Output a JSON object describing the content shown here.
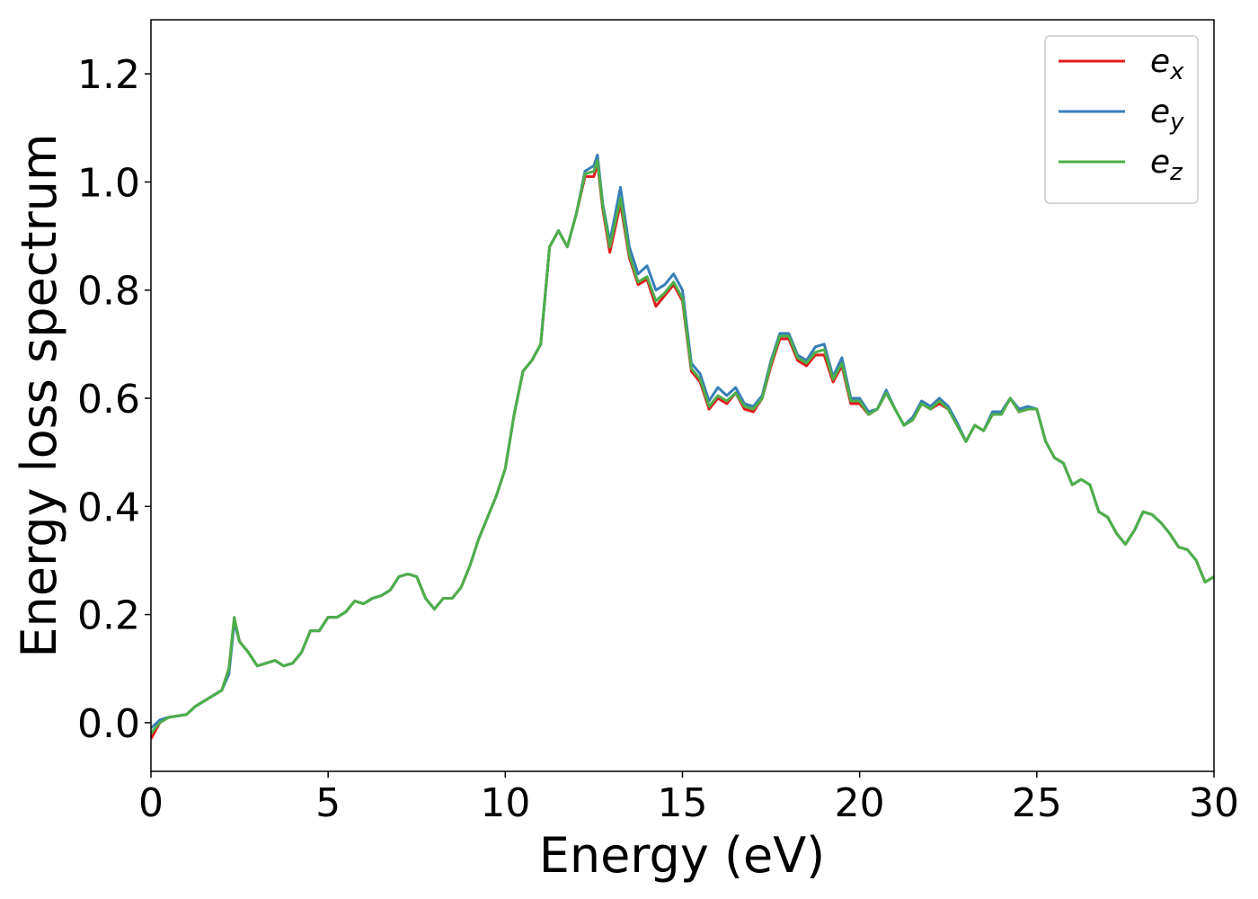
{
  "chart_data": {
    "type": "line",
    "xlabel": "Energy (eV)",
    "ylabel": "Energy loss spectrum",
    "x": [
      0,
      0.25,
      0.5,
      1,
      1.25,
      1.5,
      1.75,
      2,
      2.2,
      2.35,
      2.5,
      2.75,
      3,
      3.25,
      3.5,
      3.75,
      4,
      4.25,
      4.5,
      4.75,
      5,
      5.25,
      5.5,
      5.75,
      6,
      6.25,
      6.5,
      6.75,
      7,
      7.25,
      7.5,
      7.75,
      8,
      8.25,
      8.5,
      8.75,
      9,
      9.25,
      9.5,
      9.75,
      10,
      10.25,
      10.5,
      10.75,
      11,
      11.25,
      11.5,
      11.75,
      12,
      12.25,
      12.5,
      12.6,
      12.75,
      12.95,
      13.25,
      13.5,
      13.75,
      14,
      14.25,
      14.5,
      14.75,
      15,
      15.25,
      15.5,
      15.75,
      16,
      16.25,
      16.5,
      16.75,
      17,
      17.25,
      17.5,
      17.75,
      18,
      18.25,
      18.5,
      18.75,
      19,
      19.25,
      19.5,
      19.75,
      20,
      20.25,
      20.5,
      20.75,
      21,
      21.25,
      21.5,
      21.75,
      22,
      22.25,
      22.5,
      22.75,
      23,
      23.25,
      23.5,
      23.75,
      24,
      24.25,
      24.5,
      24.75,
      25,
      25.25,
      25.5,
      25.75,
      26,
      26.25,
      26.5,
      26.75,
      27,
      27.25,
      27.5,
      27.75,
      28,
      28.25,
      28.5,
      28.75,
      29,
      29.25,
      29.5,
      29.75,
      30
    ],
    "series": [
      {
        "name": "ex",
        "color": "#e41a1c",
        "values": [
          -0.03,
          0,
          0.01,
          0.015,
          0.03,
          0.04,
          0.05,
          0.06,
          0.1,
          0.19,
          0.15,
          0.13,
          0.105,
          0.11,
          0.115,
          0.105,
          0.11,
          0.13,
          0.17,
          0.17,
          0.195,
          0.195,
          0.205,
          0.225,
          0.22,
          0.23,
          0.235,
          0.245,
          0.27,
          0.275,
          0.27,
          0.23,
          0.21,
          0.23,
          0.23,
          0.25,
          0.29,
          0.34,
          0.38,
          0.42,
          0.47,
          0.57,
          0.65,
          0.67,
          0.7,
          0.88,
          0.91,
          0.88,
          0.94,
          1.01,
          1.01,
          1.035,
          0.95,
          0.87,
          0.96,
          0.86,
          0.81,
          0.82,
          0.77,
          0.79,
          0.81,
          0.78,
          0.65,
          0.63,
          0.58,
          0.6,
          0.59,
          0.61,
          0.58,
          0.575,
          0.6,
          0.66,
          0.71,
          0.71,
          0.67,
          0.66,
          0.68,
          0.68,
          0.63,
          0.66,
          0.59,
          0.59,
          0.57,
          0.58,
          0.61,
          0.58,
          0.55,
          0.56,
          0.59,
          0.58,
          0.59,
          0.58,
          0.55,
          0.52,
          0.55,
          0.54,
          0.57,
          0.57,
          0.6,
          0.575,
          0.58,
          0.58,
          0.52,
          0.49,
          0.48,
          0.44,
          0.45,
          0.44,
          0.39,
          0.38,
          0.35,
          0.33,
          0.355,
          0.39,
          0.385,
          0.37,
          0.35,
          0.325,
          0.32,
          0.3,
          0.26,
          0.27
        ]
      },
      {
        "name": "ey",
        "color": "#377eb8",
        "values": [
          -0.01,
          0.005,
          0.01,
          0.015,
          0.03,
          0.04,
          0.05,
          0.06,
          0.09,
          0.185,
          0.15,
          0.13,
          0.105,
          0.11,
          0.115,
          0.105,
          0.11,
          0.13,
          0.17,
          0.17,
          0.195,
          0.195,
          0.205,
          0.225,
          0.22,
          0.23,
          0.235,
          0.245,
          0.27,
          0.275,
          0.27,
          0.23,
          0.21,
          0.23,
          0.23,
          0.25,
          0.29,
          0.34,
          0.38,
          0.42,
          0.47,
          0.57,
          0.65,
          0.67,
          0.7,
          0.88,
          0.91,
          0.88,
          0.94,
          1.02,
          1.03,
          1.05,
          0.96,
          0.89,
          0.99,
          0.88,
          0.83,
          0.845,
          0.8,
          0.81,
          0.83,
          0.8,
          0.665,
          0.645,
          0.595,
          0.62,
          0.605,
          0.62,
          0.59,
          0.585,
          0.605,
          0.67,
          0.72,
          0.72,
          0.68,
          0.67,
          0.695,
          0.7,
          0.64,
          0.675,
          0.6,
          0.6,
          0.575,
          0.58,
          0.615,
          0.58,
          0.55,
          0.565,
          0.595,
          0.585,
          0.6,
          0.585,
          0.555,
          0.52,
          0.55,
          0.54,
          0.575,
          0.575,
          0.6,
          0.58,
          0.585,
          0.58,
          0.52,
          0.49,
          0.48,
          0.44,
          0.45,
          0.44,
          0.39,
          0.38,
          0.35,
          0.33,
          0.355,
          0.39,
          0.385,
          0.37,
          0.35,
          0.325,
          0.32,
          0.3,
          0.26,
          0.27
        ]
      },
      {
        "name": "ez",
        "color": "#4daf4a",
        "values": [
          -0.02,
          0,
          0.01,
          0.015,
          0.03,
          0.04,
          0.05,
          0.06,
          0.1,
          0.195,
          0.15,
          0.13,
          0.105,
          0.11,
          0.115,
          0.105,
          0.11,
          0.13,
          0.17,
          0.17,
          0.195,
          0.195,
          0.205,
          0.225,
          0.22,
          0.23,
          0.235,
          0.245,
          0.27,
          0.275,
          0.27,
          0.23,
          0.21,
          0.23,
          0.23,
          0.25,
          0.29,
          0.34,
          0.38,
          0.42,
          0.47,
          0.57,
          0.65,
          0.67,
          0.7,
          0.88,
          0.91,
          0.88,
          0.94,
          1.015,
          1.02,
          1.04,
          0.955,
          0.88,
          0.97,
          0.865,
          0.815,
          0.825,
          0.78,
          0.795,
          0.815,
          0.785,
          0.655,
          0.635,
          0.585,
          0.605,
          0.595,
          0.61,
          0.585,
          0.58,
          0.6,
          0.665,
          0.715,
          0.715,
          0.675,
          0.665,
          0.685,
          0.69,
          0.635,
          0.665,
          0.595,
          0.595,
          0.57,
          0.58,
          0.61,
          0.58,
          0.55,
          0.56,
          0.59,
          0.58,
          0.595,
          0.58,
          0.55,
          0.52,
          0.55,
          0.54,
          0.57,
          0.57,
          0.6,
          0.575,
          0.58,
          0.58,
          0.52,
          0.49,
          0.48,
          0.44,
          0.45,
          0.44,
          0.39,
          0.38,
          0.35,
          0.33,
          0.355,
          0.39,
          0.385,
          0.37,
          0.35,
          0.325,
          0.32,
          0.3,
          0.26,
          0.27
        ]
      }
    ],
    "xlim": [
      0,
      30
    ],
    "xticks": [
      0,
      5,
      10,
      15,
      20,
      25,
      30
    ],
    "ylim": [
      -0.09,
      1.3
    ],
    "yticks": [
      {
        "value": 0,
        "label": "0.0"
      },
      0.2,
      0.4,
      0.6,
      0.8,
      {
        "value": 1,
        "label": "1.0"
      },
      1.2
    ],
    "legend": "upper right",
    "grid": false
  }
}
